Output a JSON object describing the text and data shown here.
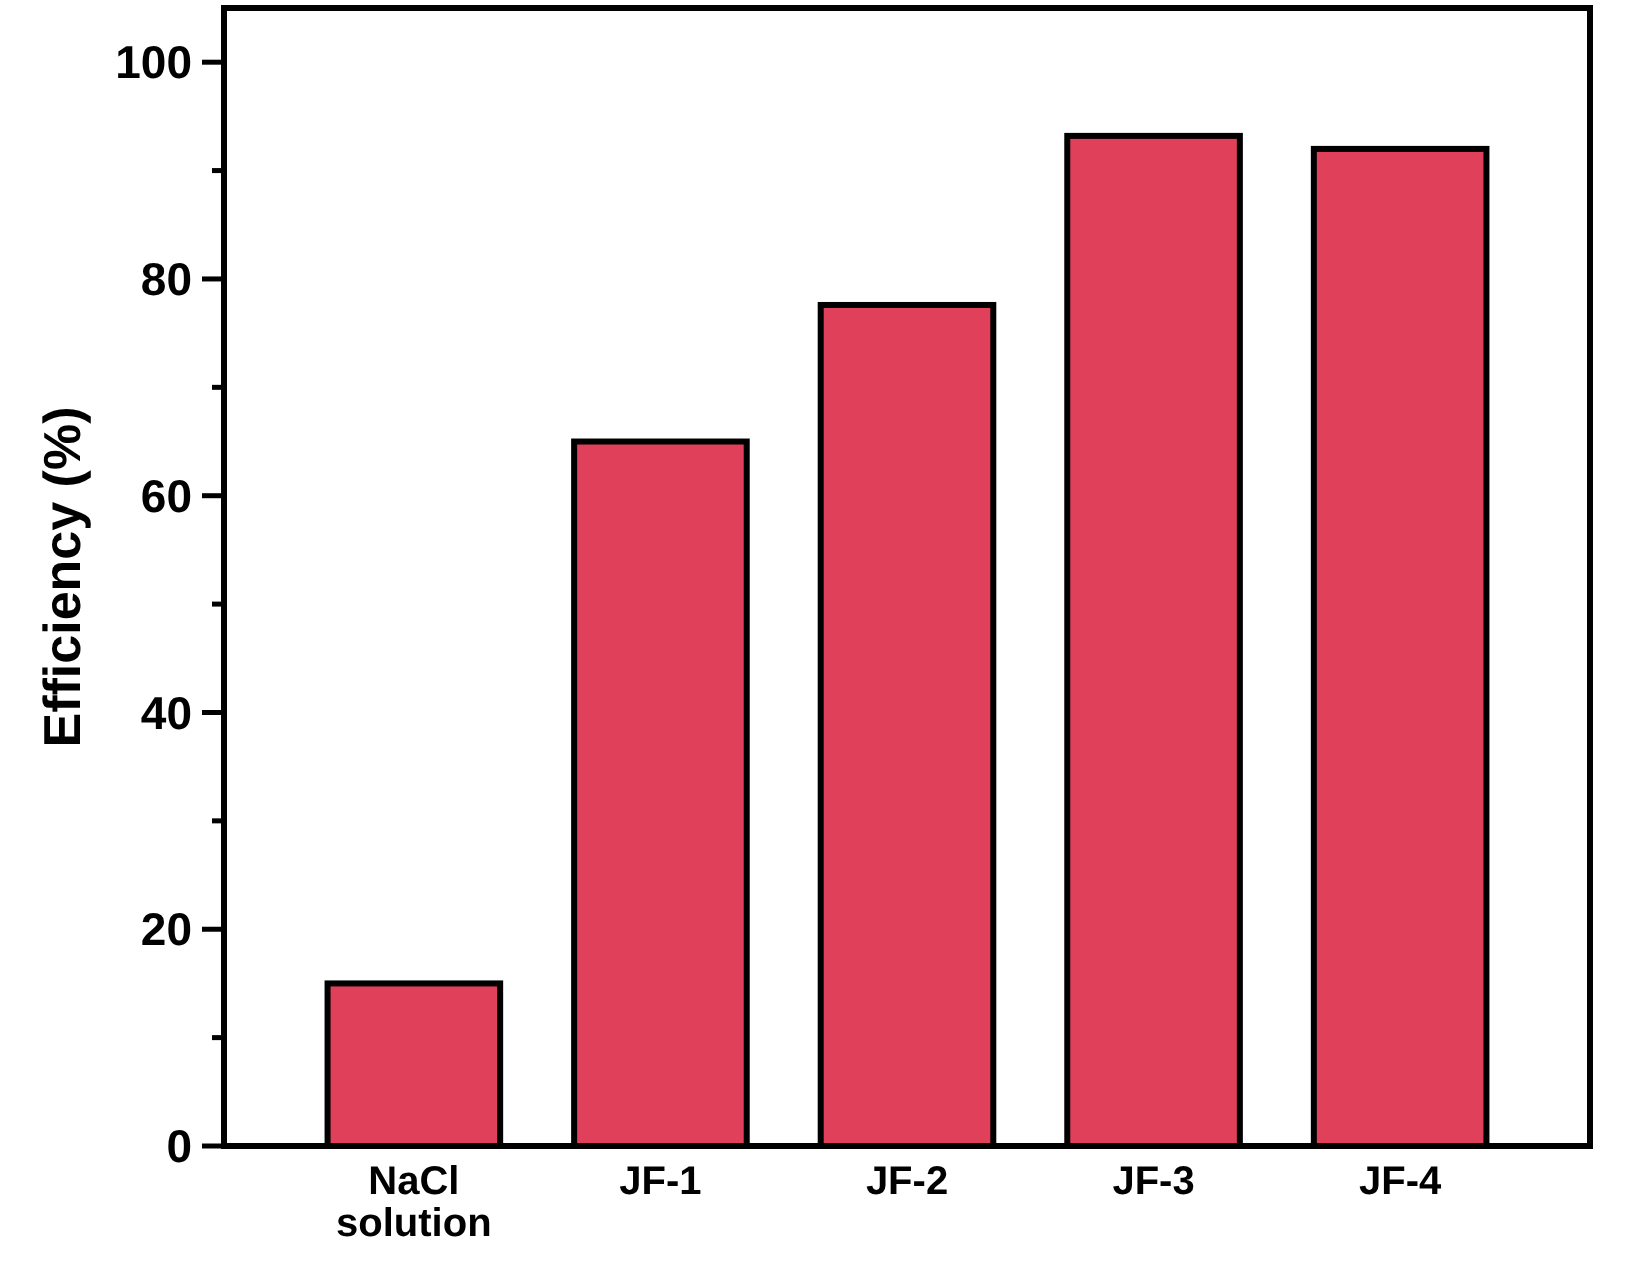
{
  "chart_data": {
    "type": "bar",
    "ylabel": "Efficiency (%)",
    "categories": [
      "NaCl solution",
      "JF-1",
      "JF-2",
      "JF-3",
      "JF-4"
    ],
    "values": [
      15,
      65,
      77.6,
      93.2,
      92
    ],
    "color": "#e0405a",
    "ylim": [
      0,
      105
    ],
    "yticks": [
      0,
      {
        "value": 10,
        "label": null
      },
      20,
      {
        "value": 30,
        "label": null
      },
      40,
      {
        "value": 50,
        "label": null
      },
      60,
      {
        "value": 70,
        "label": null
      },
      80,
      {
        "value": 90,
        "label": null
      },
      100
    ],
    "grid": false
  }
}
